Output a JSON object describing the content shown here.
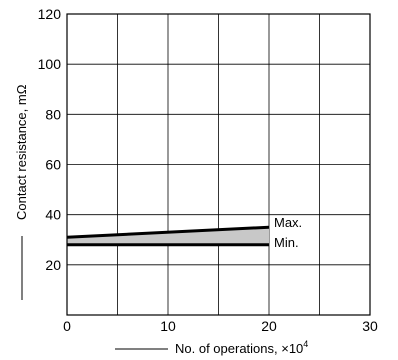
{
  "chart_data": {
    "type": "area",
    "title": "",
    "xlabel": "No. of operations, ×10",
    "xlabel_superscript": "4",
    "ylabel": "Contact resistance, mΩ",
    "xlim": [
      0,
      30
    ],
    "ylim": [
      0,
      120
    ],
    "x_ticks": [
      0,
      10,
      20,
      30
    ],
    "y_ticks": [
      20,
      40,
      60,
      80,
      100,
      120
    ],
    "x_tick_labels": [
      "0",
      "10",
      "20",
      "30"
    ],
    "y_tick_labels": [
      "20",
      "40",
      "60",
      "80",
      "100",
      "120"
    ],
    "grid": true,
    "series": [
      {
        "name": "Max.",
        "x": [
          0,
          20
        ],
        "values": [
          31,
          35
        ]
      },
      {
        "name": "Min.",
        "x": [
          0,
          20
        ],
        "values": [
          28,
          28
        ]
      }
    ],
    "colors": {
      "band_fill": "#c8c8c8",
      "line": "#000000",
      "grid": "#000000"
    }
  }
}
